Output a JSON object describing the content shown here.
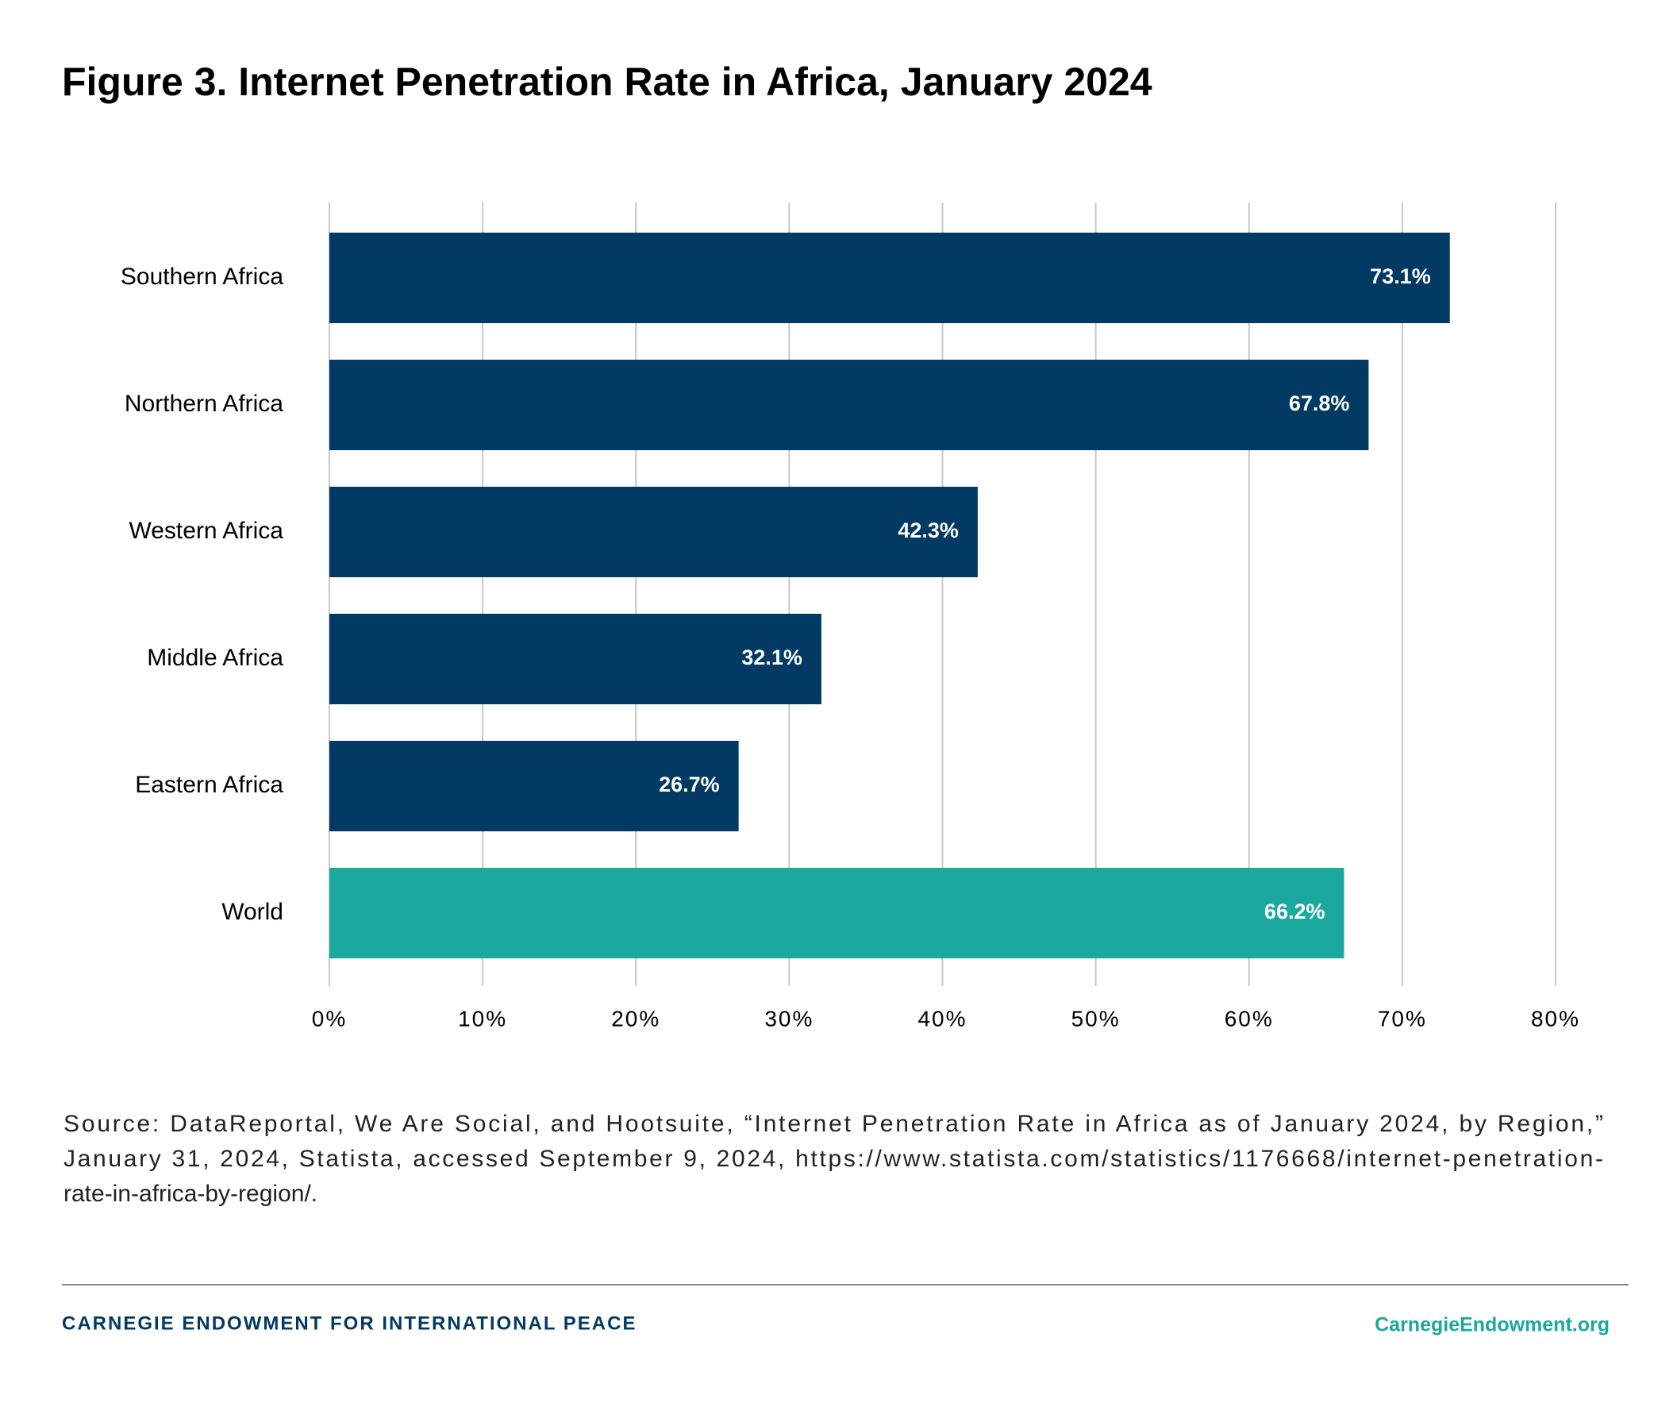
{
  "chart_data": {
    "type": "bar",
    "orientation": "horizontal",
    "title": "Figure 3. Internet Penetration Rate in Africa, January 2024",
    "categories": [
      "Southern Africa",
      "Northern Africa",
      "Western Africa",
      "Middle Africa",
      "Eastern Africa",
      "World"
    ],
    "values": [
      73.1,
      67.8,
      42.3,
      32.1,
      26.7,
      66.2
    ],
    "value_labels": [
      "73.1%",
      "67.8%",
      "42.3%",
      "32.1%",
      "26.7%",
      "66.2%"
    ],
    "colors": [
      "#023a63",
      "#023a63",
      "#023a63",
      "#023a63",
      "#023a63",
      "#1aa89f"
    ],
    "xlim": [
      0,
      80
    ],
    "xticks": [
      {
        "value": 0,
        "label": "0%"
      },
      {
        "value": 10,
        "label": "10%"
      },
      {
        "value": 20,
        "label": "20%"
      },
      {
        "value": 30,
        "label": "30%"
      },
      {
        "value": 40,
        "label": "40%"
      },
      {
        "value": 50,
        "label": "50%"
      },
      {
        "value": 60,
        "label": "60%"
      },
      {
        "value": 70,
        "label": "70%"
      },
      {
        "value": 80,
        "label": "80%"
      }
    ],
    "grid": true,
    "source": [
      "Source: DataReportal, We Are Social, and Hootsuite, “Internet Penetration Rate in Africa as of January 2024, by Region,”",
      "January 31, 2024, Statista, accessed September 9, 2024, https://www.statista.com/statistics/1176668/internet-penetration-",
      "rate-in-africa-by-region/."
    ]
  },
  "footer": {
    "left": "CARNEGIE ENDOWMENT FOR INTERNATIONAL PEACE",
    "right": "CarnegieEndowment.org"
  }
}
